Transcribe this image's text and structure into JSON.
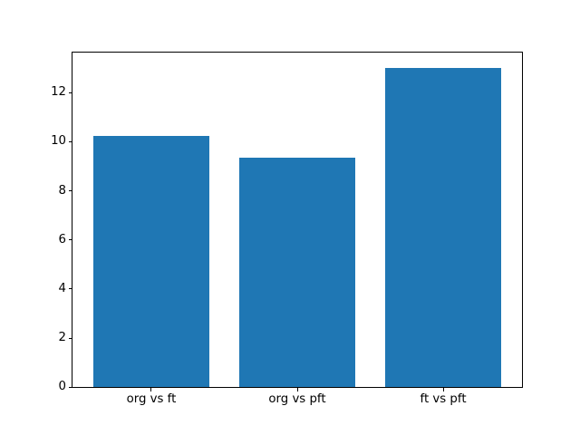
{
  "chart_data": {
    "type": "bar",
    "title": "",
    "xlabel": "",
    "ylabel": "",
    "categories": [
      "org vs ft",
      "org vs pft",
      "ft vs pft"
    ],
    "values": [
      10.25,
      9.35,
      13.0
    ],
    "yticks": [
      0,
      2,
      4,
      6,
      8,
      10,
      12
    ],
    "ylim": [
      0,
      13.65
    ],
    "xlim": [
      -0.54,
      2.54
    ],
    "bar_width_fraction": 0.8,
    "grid": false,
    "legend": null,
    "colors": {
      "bar": "#1f77b4",
      "axes_line": "#000000",
      "text": "#000000",
      "background": "#ffffff"
    }
  }
}
